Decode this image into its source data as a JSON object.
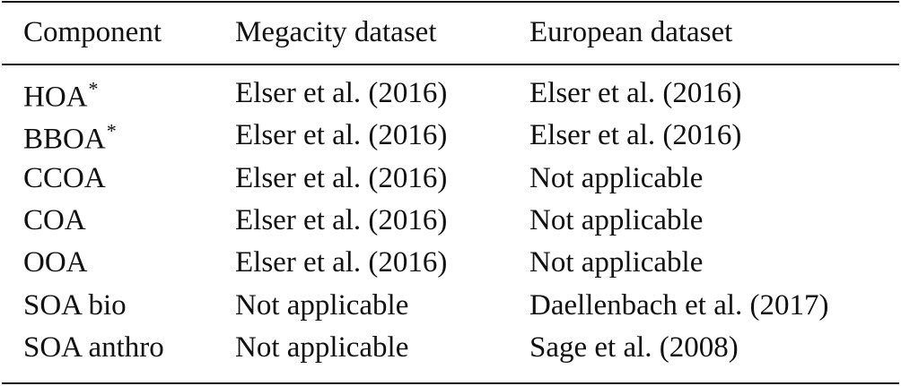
{
  "table": {
    "header": [
      "Component",
      "Megacity dataset",
      "European dataset"
    ],
    "rows": [
      [
        {
          "text": "HOA",
          "sup": "*"
        },
        "Elser et al. (2016)",
        "Elser et al. (2016)"
      ],
      [
        {
          "text": "BBOA",
          "sup": "*"
        },
        "Elser et al. (2016)",
        "Elser et al. (2016)"
      ],
      [
        "CCOA",
        "Elser et al. (2016)",
        "Not applicable"
      ],
      [
        "COA",
        "Elser et al. (2016)",
        "Not applicable"
      ],
      [
        "OOA",
        "Elser et al. (2016)",
        "Not applicable"
      ],
      [
        "SOA bio",
        "Not applicable",
        "Daellenbach et al. (2017)"
      ],
      [
        "SOA anthro",
        "Not applicable",
        "Sage et al. (2008)"
      ]
    ]
  }
}
